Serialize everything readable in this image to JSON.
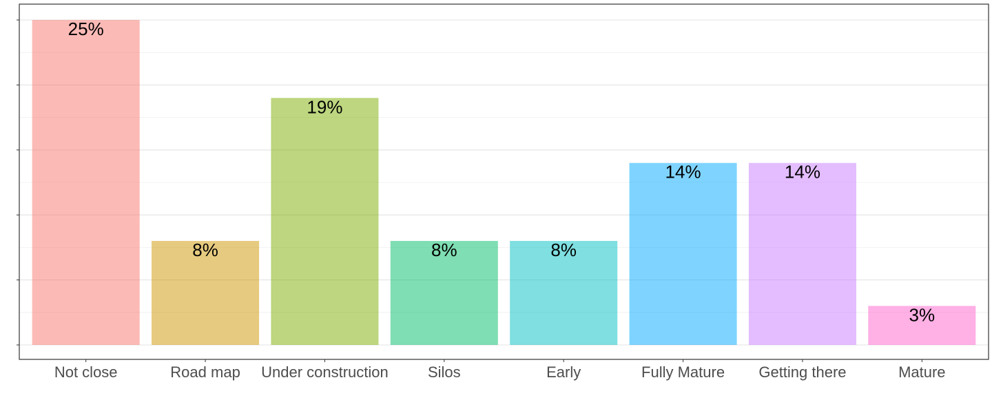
{
  "chart_data": {
    "type": "bar",
    "title": "",
    "xlabel": "",
    "ylabel": "",
    "categories": [
      "Not close",
      "Road map",
      "Under construction",
      "Silos",
      "Early",
      "Fully Mature",
      "Getting there",
      "Mature"
    ],
    "values": [
      25,
      8,
      19,
      8,
      8,
      14,
      14,
      3
    ],
    "value_labels": [
      "25%",
      "8%",
      "19%",
      "8%",
      "8%",
      "14%",
      "14%",
      "3%"
    ],
    "colors": [
      "#F8766D",
      "#CD9600",
      "#7CAE00",
      "#00BE67",
      "#00BFC4",
      "#00A9FF",
      "#C77CFF",
      "#FF61CC"
    ],
    "ylim": [
      0,
      25
    ],
    "y_tick_labels_shown": false,
    "grid": true,
    "legend": "none"
  }
}
